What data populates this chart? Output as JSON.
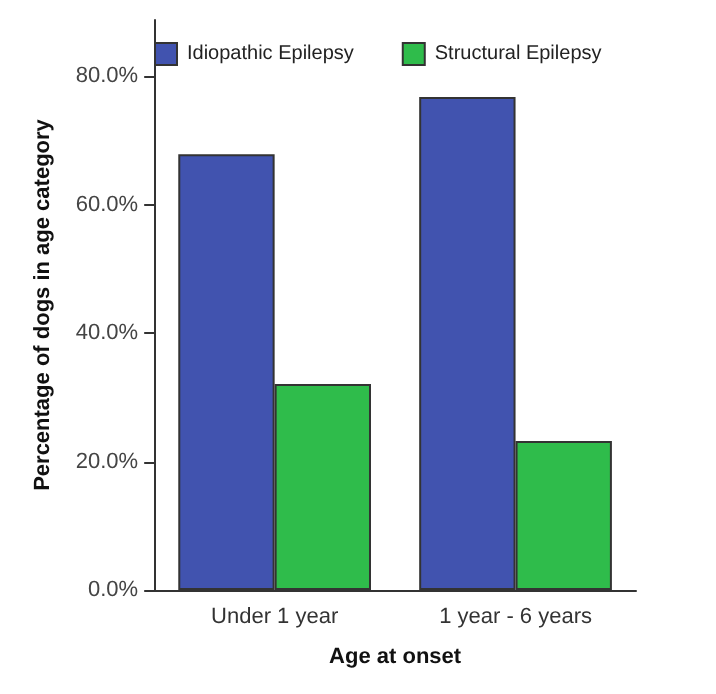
{
  "chart_data": {
    "type": "bar",
    "xlabel": "Age at onset",
    "ylabel": "Percentage of dogs in age category",
    "categories": [
      "Under 1 year",
      "1 year - 6 years"
    ],
    "series": [
      {
        "name": "Idiopathic Epilepsy",
        "color": "#4153af",
        "values": [
          67.9,
          76.8
        ]
      },
      {
        "name": "Structural Epilepsy",
        "color": "#2fbc4b",
        "values": [
          32.1,
          23.2
        ]
      }
    ],
    "ylim": [
      0,
      88.8
    ],
    "yticks": [
      {
        "value": 0,
        "label": "0.0%"
      },
      {
        "value": 20,
        "label": "20.0%"
      },
      {
        "value": 40,
        "label": "40.0%"
      },
      {
        "value": 60,
        "label": "60.0%"
      },
      {
        "value": 80,
        "label": "80.0%"
      }
    ],
    "grid": false,
    "legend": "top"
  }
}
